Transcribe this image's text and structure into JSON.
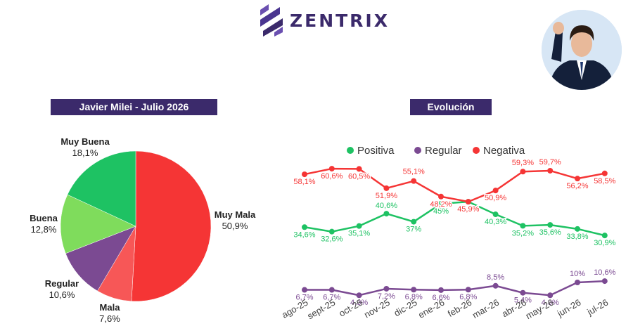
{
  "brand": {
    "name": "ZENTRIX",
    "logo_icon": "stacked-diagonal-bars-logo",
    "color": "#3b2a6b"
  },
  "photo": {
    "icon": "person-portrait-photo"
  },
  "pie_title": "Javier Milei - Julio 2026",
  "line_title": "Evolución",
  "chart_data": [
    {
      "type": "pie",
      "title": "Javier Milei - Julio 2026",
      "slices": [
        {
          "label": "Muy Mala",
          "value": 50.9,
          "value_label": "50,9%",
          "color": "#f53535"
        },
        {
          "label": "Mala",
          "value": 7.6,
          "value_label": "7,6%",
          "color": "#f75757"
        },
        {
          "label": "Regular",
          "value": 10.6,
          "value_label": "10,6%",
          "color": "#7b4a92"
        },
        {
          "label": "Buena",
          "value": 12.8,
          "value_label": "12,8%",
          "color": "#7fdc5c"
        },
        {
          "label": "Muy Buena",
          "value": 18.1,
          "value_label": "18,1%",
          "color": "#1ec263"
        }
      ]
    },
    {
      "type": "line",
      "title": "Evolución",
      "legend_position": "top",
      "categories": [
        "ago-25",
        "sept-25",
        "oct-25",
        "nov-25",
        "dic-25",
        "ene-26",
        "feb-26",
        "mar-26",
        "abr-26",
        "may-26",
        "jun-26",
        "jul-26"
      ],
      "series": [
        {
          "name": "Positiva",
          "color": "#1ec263",
          "values": [
            34.6,
            32.6,
            35.1,
            40.6,
            37,
            45,
            45.9,
            40.3,
            35.2,
            35.6,
            33.8,
            30.9
          ],
          "labels": [
            "34,6%",
            "32,6%",
            "35,1%",
            "40,6%",
            "37%",
            "45%",
            "",
            "40,3%",
            "35,2%",
            "35,6%",
            "33,8%",
            "30,9%"
          ]
        },
        {
          "name": "Regular",
          "color": "#7b4a92",
          "values": [
            6.7,
            6.7,
            4.3,
            7.2,
            6.8,
            6.6,
            6.8,
            8.5,
            5.4,
            4.3,
            10,
            10.6
          ],
          "labels": [
            "6,7%",
            "6,7%",
            "4,3%",
            "7,2%",
            "6,8%",
            "6,6%",
            "6,8%",
            "8,5%",
            "5,4%",
            "4,3%",
            "10%",
            "10,6%"
          ]
        },
        {
          "name": "Negativa",
          "color": "#f53535",
          "values": [
            58.1,
            60.6,
            60.5,
            51.9,
            55.1,
            48.2,
            45.9,
            50.9,
            59.3,
            59.7,
            56.2,
            58.5
          ],
          "labels": [
            "58,1%",
            "60,6%",
            "60,5%",
            "51,9%",
            "55,1%",
            "48,2%",
            "45,9%",
            "50,9%",
            "59,3%",
            "59,7%",
            "56,2%",
            "58,5%"
          ]
        }
      ]
    }
  ]
}
